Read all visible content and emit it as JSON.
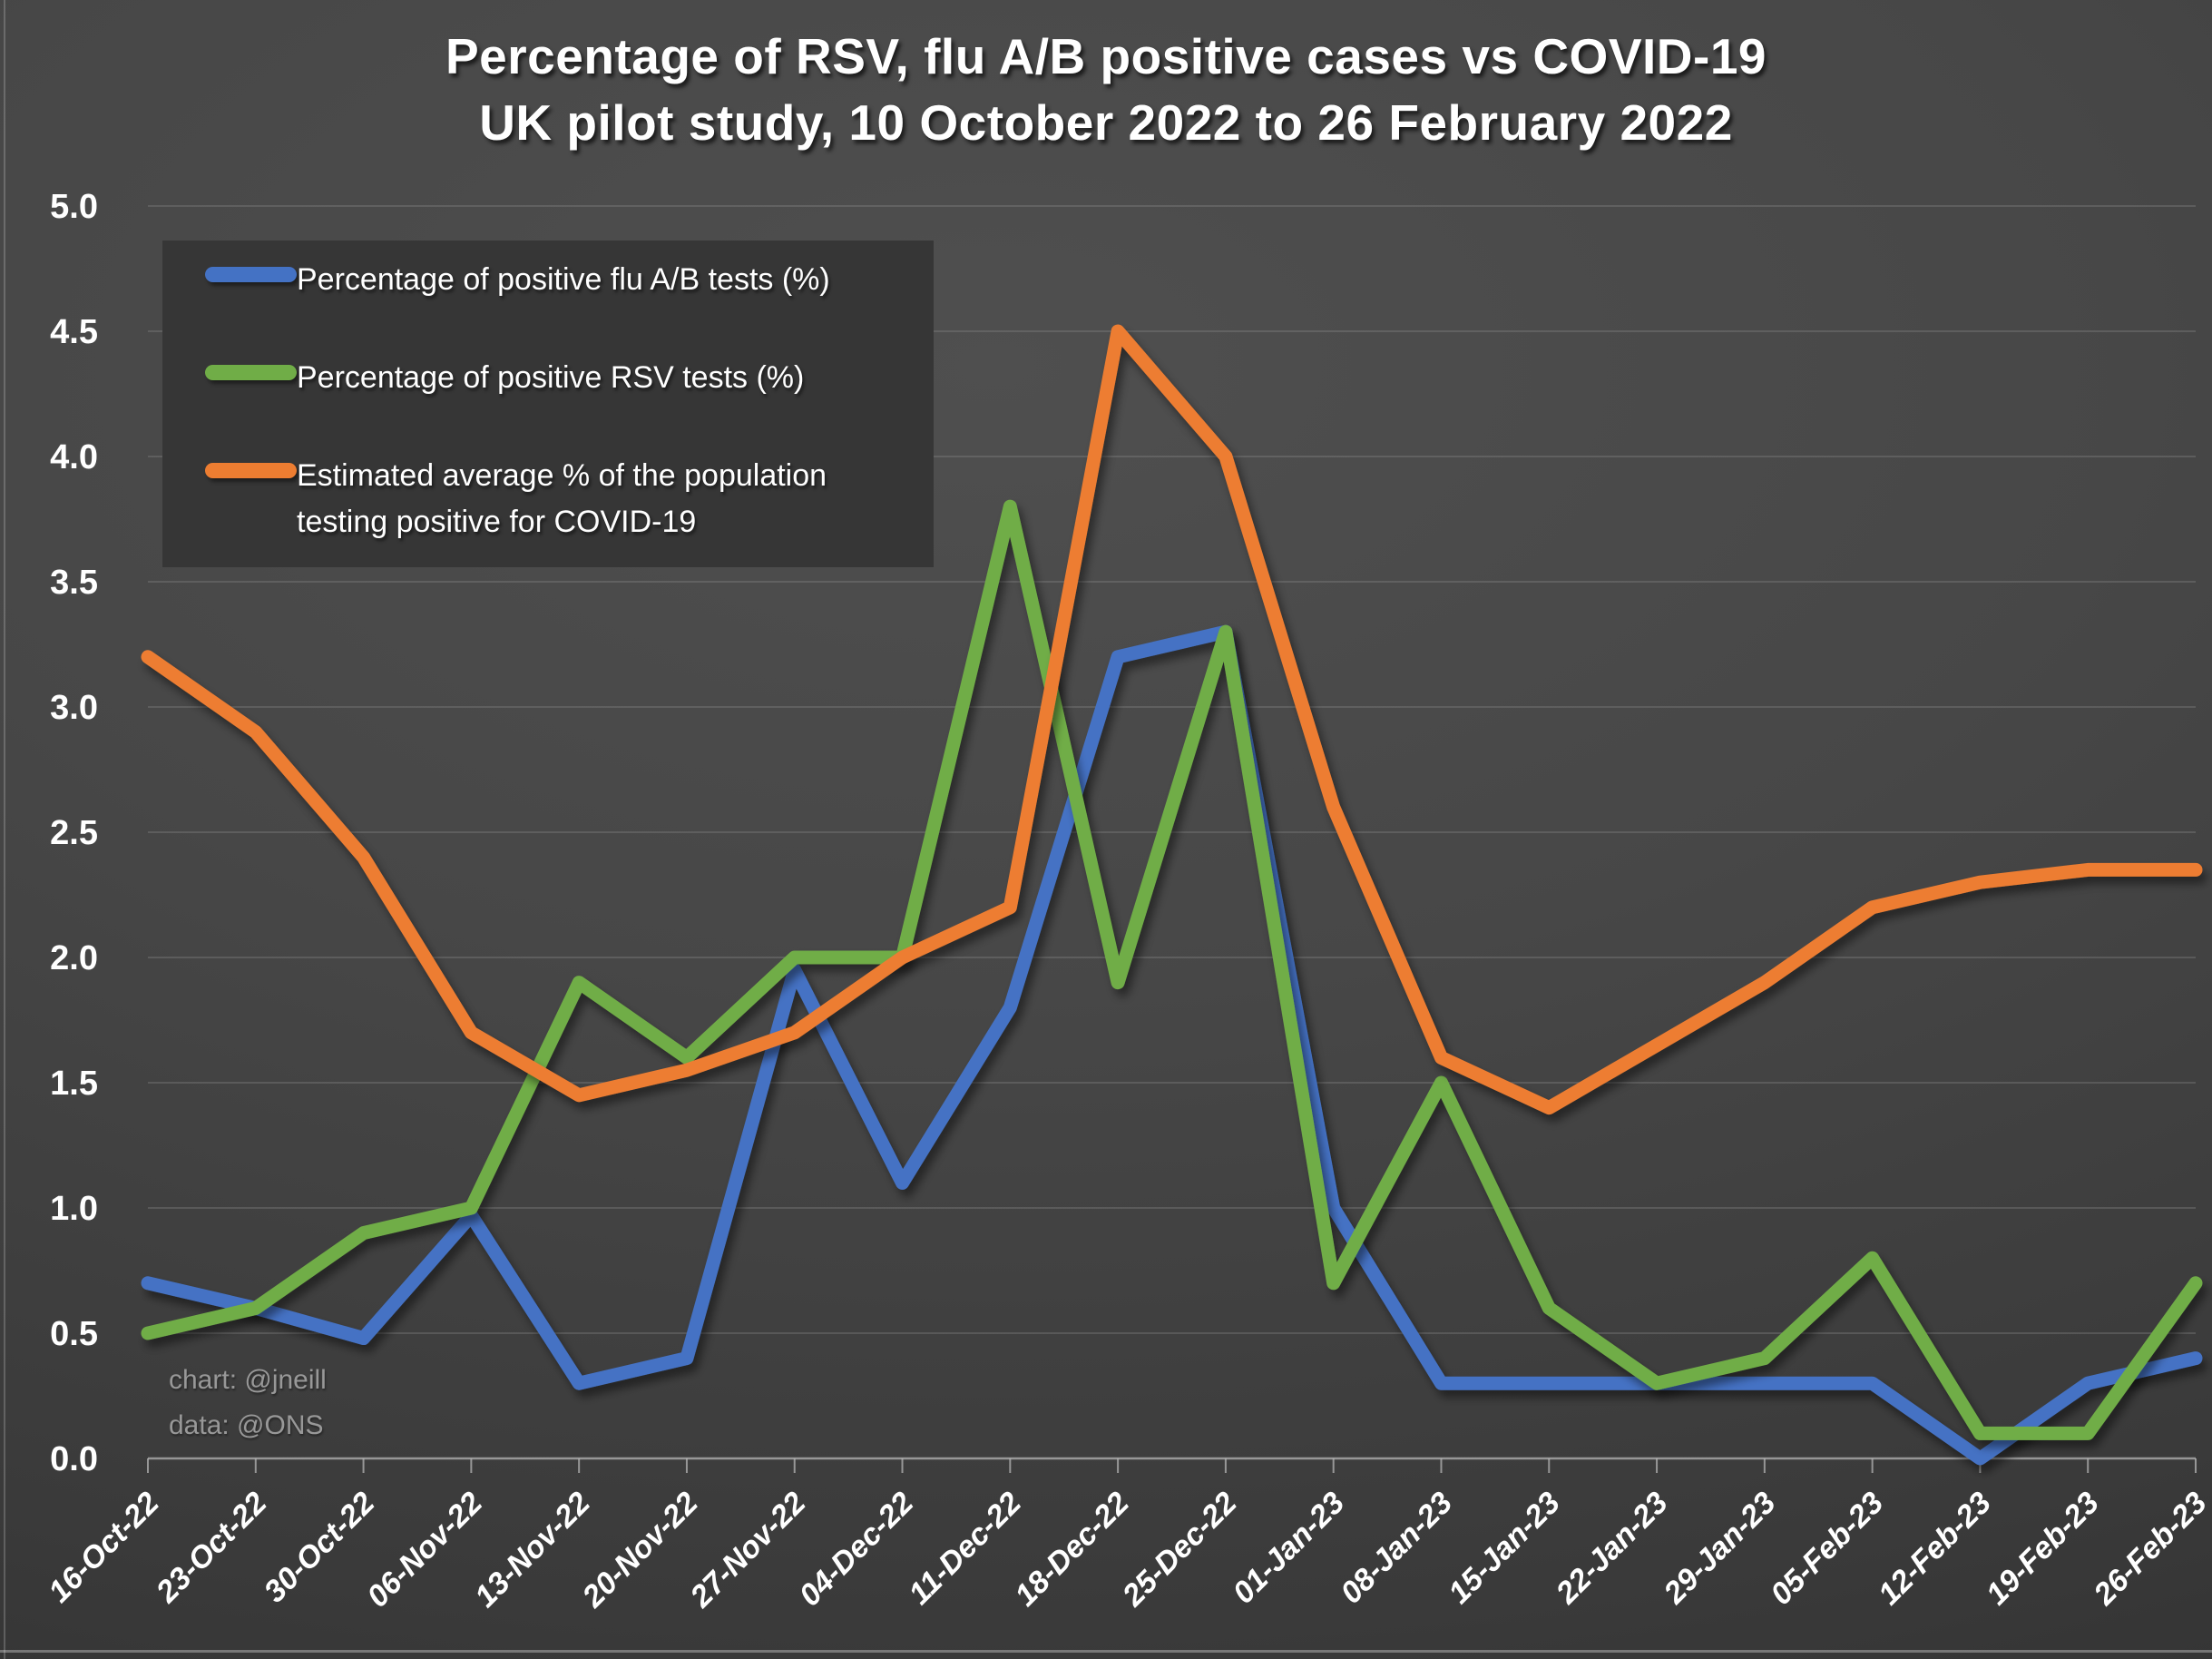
{
  "title": {
    "line1": "Percentage of RSV, flu A/B positive cases vs COVID-19",
    "line2": "UK pilot study, 10 October 2022 to 26 February 2022"
  },
  "watermark": {
    "line1": "chart: @jneill",
    "line2": "data: @ONS"
  },
  "chart_data": {
    "type": "line",
    "categories": [
      "16-Oct-22",
      "23-Oct-22",
      "30-Oct-22",
      "06-Nov-22",
      "13-Nov-22",
      "20-Nov-22",
      "27-Nov-22",
      "04-Dec-22",
      "11-Dec-22",
      "18-Dec-22",
      "25-Dec-22",
      "01-Jan-23",
      "08-Jan-23",
      "15-Jan-23",
      "22-Jan-23",
      "29-Jan-23",
      "05-Feb-23",
      "12-Feb-23",
      "19-Feb-23",
      "26-Feb-23"
    ],
    "series": [
      {
        "name": "Percentage of positive flu A/B tests (%)",
        "color": "#4472C4",
        "values": [
          0.7,
          0.6,
          0.48,
          0.97,
          0.3,
          0.4,
          1.95,
          1.1,
          1.8,
          3.2,
          3.3,
          1.0,
          0.3,
          0.3,
          0.3,
          0.3,
          0.3,
          0.0,
          0.3,
          0.4
        ]
      },
      {
        "name": "Percentage of positive RSV tests (%)",
        "color": "#70AD47",
        "values": [
          0.5,
          0.6,
          0.9,
          1.0,
          1.9,
          1.6,
          2.0,
          2.0,
          3.8,
          1.9,
          3.3,
          0.7,
          1.5,
          0.6,
          0.3,
          0.4,
          0.8,
          0.1,
          0.1,
          0.7
        ]
      },
      {
        "name": "Estimated average % of the population testing positive for COVID-19",
        "color": "#ED7D31",
        "values": [
          3.2,
          2.9,
          2.4,
          1.7,
          1.45,
          1.55,
          1.7,
          2.0,
          2.2,
          4.5,
          4.0,
          2.6,
          1.6,
          1.4,
          1.65,
          1.9,
          2.2,
          2.3,
          2.35,
          2.35
        ]
      }
    ],
    "ylim": [
      0,
      5
    ],
    "ytick_step": 0.5,
    "ytick_labels": [
      "0.0",
      "0.5",
      "1.0",
      "1.5",
      "2.0",
      "2.5",
      "3.0",
      "3.5",
      "4.0",
      "4.5",
      "5.0"
    ],
    "xlabel": "",
    "ylabel": "",
    "grid": true,
    "legend_position": "top-left"
  },
  "colors": {
    "background_center": "#4f4f4f",
    "background_edge": "#323232",
    "legend_background": "#363636",
    "gridline": "#909090",
    "axis_line": "#b5b5b5",
    "text": "#ffffff",
    "watermark_text": "#989898"
  }
}
